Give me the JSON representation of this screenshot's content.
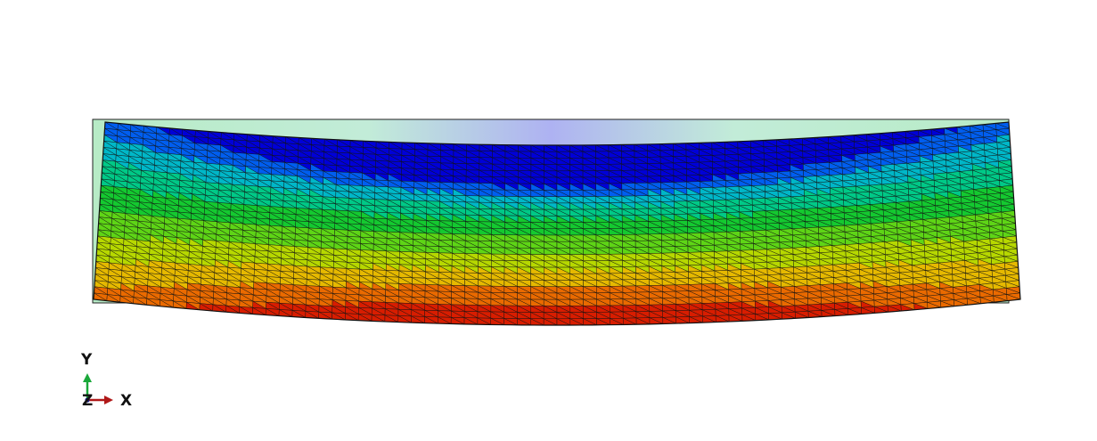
{
  "viewport": {
    "background": "#ffffff",
    "mesh": {
      "columns": 70,
      "rows": 28,
      "element_shape": "triangle",
      "edge_color": "#111111"
    },
    "contour_colors": [
      "#0000d8",
      "#005ef0",
      "#00b7c8",
      "#00c987",
      "#14c930",
      "#5ed516",
      "#b7d800",
      "#e6b900",
      "#ea6a00",
      "#d81d00"
    ],
    "undeformed_shape_color": "#bfe8c8",
    "undeformed_top_tint": "#aab0f0"
  },
  "triad": {
    "x_label": "X",
    "y_label": "Y",
    "z_label": "Z",
    "x_color": "#b01818",
    "y_color": "#1aa83a",
    "z_color": "#1a1a8c"
  }
}
